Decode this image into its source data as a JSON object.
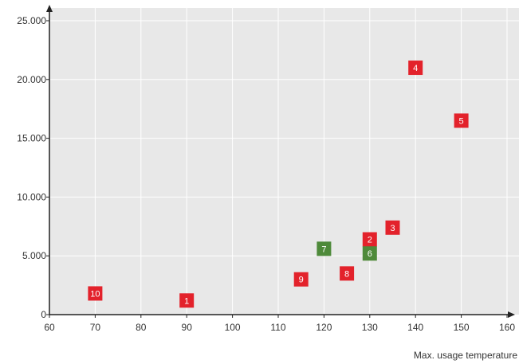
{
  "chart_data": {
    "type": "scatter",
    "title": "",
    "xlabel": "Max. usage temperature",
    "ylabel": "",
    "xlim": [
      60,
      160
    ],
    "ylim": [
      0,
      25000
    ],
    "x_ticks": [
      {
        "value": 60,
        "label": "60"
      },
      {
        "value": 70,
        "label": "70"
      },
      {
        "value": 80,
        "label": "80"
      },
      {
        "value": 90,
        "label": "90"
      },
      {
        "value": 100,
        "label": "100"
      },
      {
        "value": 110,
        "label": "110"
      },
      {
        "value": 120,
        "label": "120"
      },
      {
        "value": 130,
        "label": "130"
      },
      {
        "value": 140,
        "label": "140"
      },
      {
        "value": 150,
        "label": "150"
      },
      {
        "value": 160,
        "label": "160"
      }
    ],
    "y_ticks": [
      {
        "value": 0,
        "label": "0"
      },
      {
        "value": 5000,
        "label": "5.000"
      },
      {
        "value": 10000,
        "label": "10.000"
      },
      {
        "value": 15000,
        "label": "15.000"
      },
      {
        "value": 20000,
        "label": "20.000"
      },
      {
        "value": 25000,
        "label": "25.000"
      }
    ],
    "grid": true,
    "colors": {
      "background": "#e8e8e8",
      "grid": "#ffffff",
      "axis": "#222222",
      "red": "#e3222b",
      "green": "#4e8a3a"
    },
    "points": [
      {
        "label": "1",
        "x": 90,
        "y": 1200,
        "color": "red"
      },
      {
        "label": "2",
        "x": 130,
        "y": 6400,
        "color": "red"
      },
      {
        "label": "3",
        "x": 135,
        "y": 7400,
        "color": "red"
      },
      {
        "label": "4",
        "x": 140,
        "y": 21000,
        "color": "red"
      },
      {
        "label": "5",
        "x": 150,
        "y": 16500,
        "color": "red"
      },
      {
        "label": "6",
        "x": 130,
        "y": 5200,
        "color": "green"
      },
      {
        "label": "7",
        "x": 120,
        "y": 5600,
        "color": "green"
      },
      {
        "label": "8",
        "x": 125,
        "y": 3500,
        "color": "red"
      },
      {
        "label": "9",
        "x": 115,
        "y": 3000,
        "color": "red"
      },
      {
        "label": "10",
        "x": 70,
        "y": 1800,
        "color": "red"
      }
    ]
  }
}
